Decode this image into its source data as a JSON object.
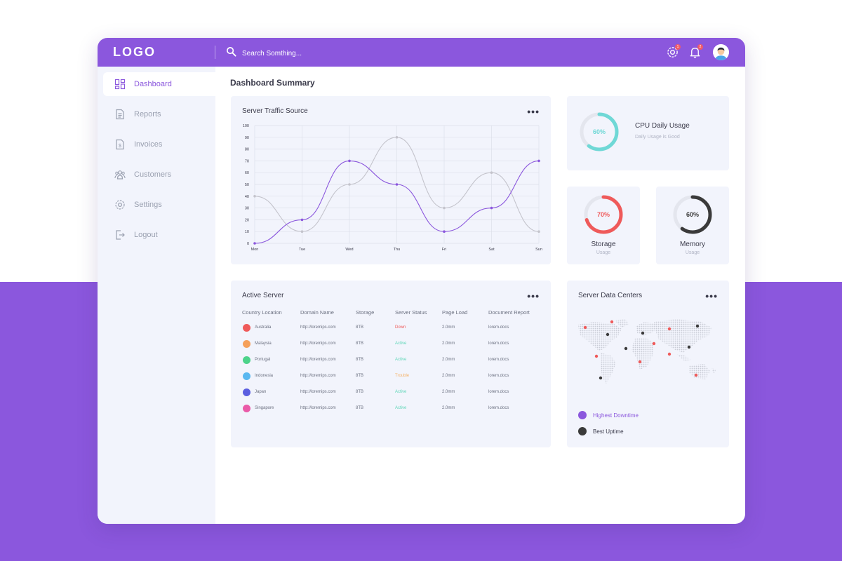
{
  "app": {
    "logo": "LOGO",
    "search": {
      "placeholder": "Search Somthing..."
    },
    "notifications": {
      "settings_badge": "1",
      "bell_badge": "2"
    }
  },
  "sidebar": {
    "items": [
      {
        "label": "Dashboard",
        "icon": "dashboard-icon",
        "active": true
      },
      {
        "label": "Reports",
        "icon": "reports-icon"
      },
      {
        "label": "Invoices",
        "icon": "invoices-icon"
      },
      {
        "label": "Customers",
        "icon": "customers-icon"
      },
      {
        "label": "Settings",
        "icon": "settings-icon"
      },
      {
        "label": "Logout",
        "icon": "logout-icon"
      }
    ]
  },
  "main": {
    "title": "Dashboard Summary",
    "traffic": {
      "title": "Server Traffic Source"
    },
    "cpu": {
      "value": "60%",
      "title": "CPU Daily Usage",
      "subtitle": "Daily Usage is Good",
      "color": "#6fd8d6"
    },
    "storage": {
      "value": "70%",
      "label": "Storage",
      "sub": "Usage",
      "color": "#ef5a5a"
    },
    "memory": {
      "value": "60%",
      "label": "Memory",
      "sub": "Usage",
      "color": "#3a3a3a"
    },
    "servers": {
      "title": "Active Server",
      "columns": [
        "Country Location",
        "Domain Name",
        "Storage",
        "Server Status",
        "Page Load",
        "Document Report"
      ],
      "rows": [
        {
          "country": "Australia",
          "domain": "http://loremips.com",
          "storage": "8TB",
          "status": "Down",
          "load": "2.0mm",
          "report": "lorem.docs",
          "dot": "#ef5a5a",
          "status_color": "#ef5a5a"
        },
        {
          "country": "Malaysia",
          "domain": "http://loremips.com",
          "storage": "8TB",
          "status": "Active",
          "load": "2.0mm",
          "report": "lorem.docs",
          "dot": "#f5a05a",
          "status_color": "#5fd6b8"
        },
        {
          "country": "Portugal",
          "domain": "http://loremips.com",
          "storage": "8TB",
          "status": "Active",
          "load": "2.0mm",
          "report": "lorem.docs",
          "dot": "#4cd38a",
          "status_color": "#5fd6b8"
        },
        {
          "country": "Indonesia",
          "domain": "http://loremips.com",
          "storage": "8TB",
          "status": "Trouble",
          "load": "2.0mm",
          "report": "lorem.docs",
          "dot": "#5ab8f0",
          "status_color": "#f5b36a"
        },
        {
          "country": "Japan",
          "domain": "http://loremips.com",
          "storage": "8TB",
          "status": "Active",
          "load": "2.0mm",
          "report": "lorem.docs",
          "dot": "#5a5ee0",
          "status_color": "#5fd6b8"
        },
        {
          "country": "Singapore",
          "domain": "http://loremips.com",
          "storage": "8TB",
          "status": "Active",
          "load": "2.0mm",
          "report": "lorem.docs",
          "dot": "#ea5aa8",
          "status_color": "#5fd6b8"
        }
      ]
    },
    "datacenters": {
      "title": "Server Data Centers",
      "legend": [
        {
          "label": "Highest Downtime",
          "color": "#8b57dd"
        },
        {
          "label": "Best Uptime",
          "color": "#3a3a3a"
        }
      ]
    }
  },
  "chart_data": {
    "type": "line",
    "categories": [
      "Mon",
      "Tue",
      "Wed",
      "Thu",
      "Fri",
      "Sat",
      "Sun"
    ],
    "ylim": [
      0,
      100
    ],
    "yticks": [
      0,
      10,
      20,
      30,
      40,
      50,
      60,
      70,
      80,
      90,
      100
    ],
    "series": [
      {
        "color": "#8b57dd",
        "values": [
          0,
          20,
          70,
          50,
          10,
          30,
          70
        ]
      },
      {
        "color": "#c4c4cc",
        "values": [
          40,
          10,
          50,
          90,
          30,
          60,
          10
        ]
      }
    ]
  },
  "colors": {
    "accent": "#8b57dd",
    "panel": "#f2f4fc"
  }
}
